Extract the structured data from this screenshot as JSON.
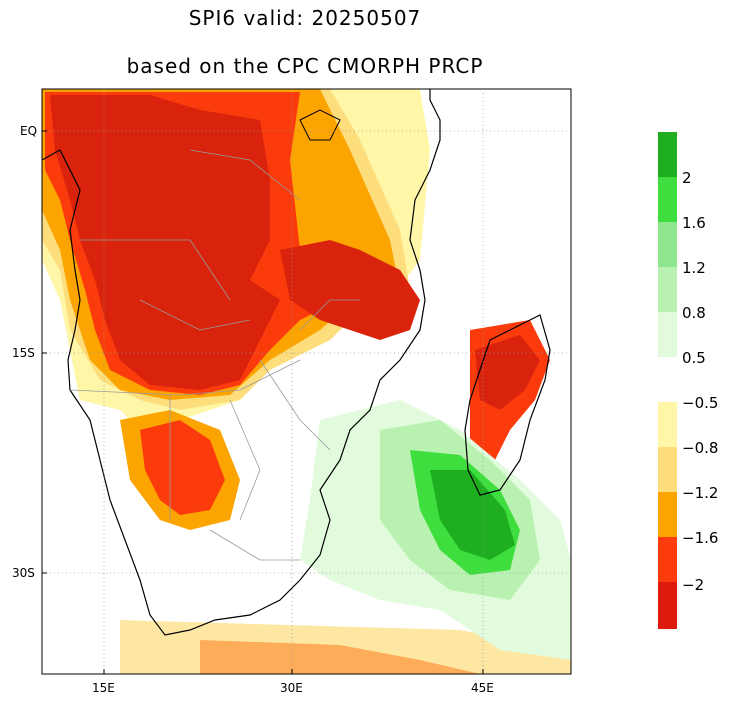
{
  "title": {
    "line1": "SPI6   valid: 20250507",
    "line2": "based on the CPC CMORPH PRCP"
  },
  "map": {
    "lat_labels": [
      "EQ",
      "15S",
      "30S"
    ],
    "lon_labels": [
      "15E",
      "30E",
      "45E"
    ]
  },
  "legend": {
    "colorbar_top": [
      {
        "color": "#1fae1f"
      },
      {
        "color": "#3ede3e",
        "label": "2"
      },
      {
        "color": "#8de68d",
        "label": "1.6"
      },
      {
        "color": "#b9f2b0",
        "label": "1.2"
      },
      {
        "color": "#e1fbdc",
        "label": "0.8"
      },
      {
        "label": "0.5"
      }
    ],
    "colorbar_bottom": [
      {
        "color": "#fff6a8",
        "label": "−0.5"
      },
      {
        "color": "#fedd7c",
        "label": "−0.8"
      },
      {
        "color": "#fca400",
        "label": "−1.2"
      },
      {
        "color": "#fc3b0c",
        "label": "−1.6"
      },
      {
        "color": "#de1a0c",
        "label": "−2"
      }
    ]
  },
  "colors": {
    "severe_dry": "#d9230c",
    "dry": "#fc3b0c",
    "moderate_dry": "#fca400",
    "mild_dry": "#fedd7c",
    "slight_dry": "#fff6a8",
    "very_wet": "#1fae1f",
    "wet": "#3ede3e",
    "mild_wet": "#8de68d",
    "slight_wet": "#b9f2b0",
    "land_outline": "#000000",
    "border": "#9a9a9a"
  }
}
